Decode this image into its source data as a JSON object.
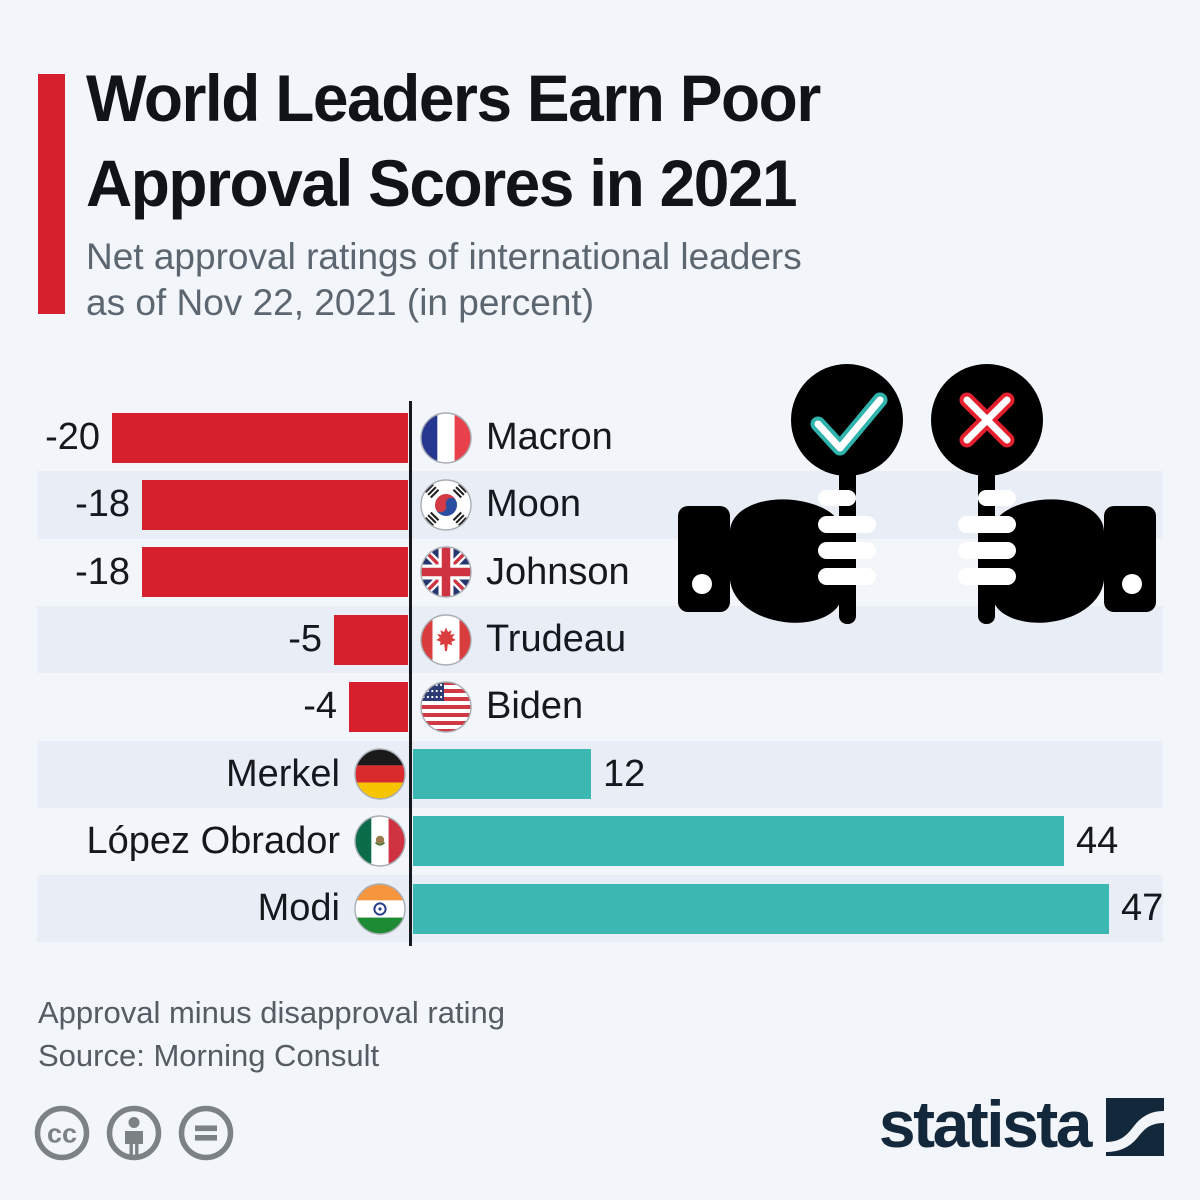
{
  "header": {
    "title_line1": "World Leaders Earn Poor",
    "title_line2": "Approval Scores in 2021",
    "subtitle_line1": "Net approval ratings of international leaders",
    "subtitle_line2": "as of Nov 22, 2021 (in percent)"
  },
  "chart_data": {
    "type": "bar",
    "orientation": "horizontal",
    "unit": "percent",
    "categories": [
      "Macron",
      "Moon",
      "Johnson",
      "Trudeau",
      "Biden",
      "Merkel",
      "López Obrador",
      "Modi"
    ],
    "values": [
      -20,
      -18,
      -18,
      -5,
      -4,
      12,
      44,
      47
    ],
    "countries": [
      "France",
      "South Korea",
      "United Kingdom",
      "Canada",
      "United States",
      "Germany",
      "Mexico",
      "India"
    ],
    "flag_codes": [
      "fr",
      "kr",
      "gb",
      "ca",
      "us",
      "de",
      "mx",
      "in"
    ],
    "xlim": [
      -20,
      47
    ],
    "negative_color": "#d7202e",
    "positive_color": "#3bb8b2",
    "band_color": "#e9edf5",
    "banded_rows": [
      1,
      3,
      5,
      7
    ],
    "axis_color": "#15181c"
  },
  "illustration": {
    "approve_icon": "check-paddle-in-hand",
    "disapprove_icon": "cross-paddle-in-hand",
    "approve_color": "#3bb8b2",
    "disapprove_color": "#e4202f"
  },
  "footer": {
    "note": "Approval minus disapproval rating",
    "source": "Source: Morning Consult",
    "license_icons": [
      "creative-commons-icon",
      "attribution-icon",
      "no-derivatives-icon"
    ]
  },
  "branding": {
    "logo_text": "statista"
  },
  "page": {
    "background": "#f2f5f9",
    "accent_color": "#d7202e",
    "text_color": "#15181c",
    "muted_color": "#5c6670",
    "navy_color": "#14283c",
    "icon_gray": "#7c8184"
  }
}
